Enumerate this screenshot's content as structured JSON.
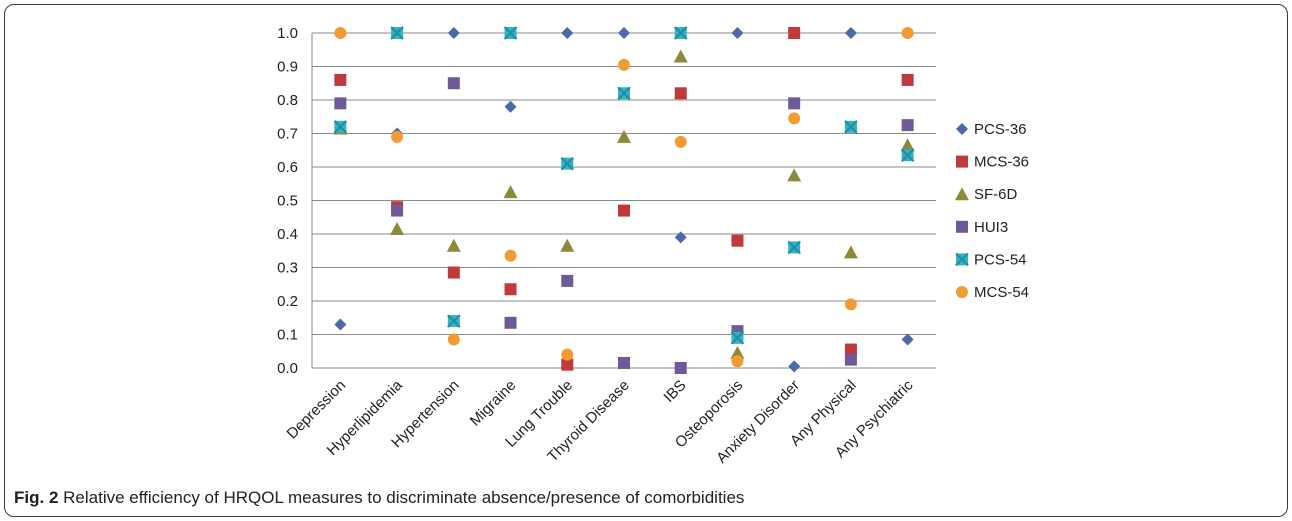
{
  "caption": {
    "label": "Fig. 2",
    "text": "Relative efficiency of HRQOL measures to discriminate absence/presence of comorbidities"
  },
  "chart_data": {
    "type": "scatter",
    "categories": [
      "Depression",
      "Hyperlipidemia",
      "Hypertension",
      "Migraine",
      "Lung Trouble",
      "Thyroid Disease",
      "IBS",
      "Osteoporosis",
      "Anxiety Disorder",
      "Any Physical",
      "Any Psychiatric"
    ],
    "y_ticks": [
      "0.0",
      "0.1",
      "0.2",
      "0.3",
      "0.4",
      "0.5",
      "0.6",
      "0.7",
      "0.8",
      "0.9",
      "1.0"
    ],
    "ylim": [
      0,
      1
    ],
    "grid": true,
    "legend_position": "right",
    "series": [
      {
        "name": "PCS-36",
        "marker": "diamond",
        "color": "#4a6aa8",
        "values": [
          0.13,
          0.7,
          1.0,
          0.78,
          1.0,
          1.0,
          0.39,
          1.0,
          0.005,
          1.0,
          0.085
        ]
      },
      {
        "name": "MCS-36",
        "marker": "square",
        "color": "#c0393b",
        "values": [
          0.86,
          0.48,
          0.285,
          0.235,
          0.01,
          0.47,
          0.82,
          0.38,
          1.0,
          0.055,
          0.86
        ]
      },
      {
        "name": "SF-6D",
        "marker": "triangle",
        "color": "#8b8a3b",
        "values": [
          0.715,
          0.415,
          0.365,
          0.525,
          0.365,
          0.69,
          0.93,
          0.045,
          0.575,
          0.345,
          0.665
        ]
      },
      {
        "name": "HUI3",
        "marker": "square",
        "color": "#6e5a98",
        "values": [
          0.79,
          0.47,
          0.85,
          0.135,
          0.26,
          0.015,
          0.0,
          0.11,
          0.79,
          0.025,
          0.725
        ]
      },
      {
        "name": "PCS-54",
        "marker": "xsquare",
        "color": "#33b2c6",
        "values": [
          0.72,
          1.0,
          0.14,
          1.0,
          0.61,
          0.82,
          1.0,
          0.09,
          0.36,
          0.72,
          0.635
        ]
      },
      {
        "name": "MCS-54",
        "marker": "circle",
        "color": "#f29b32",
        "values": [
          1.0,
          0.69,
          0.085,
          0.335,
          0.04,
          0.905,
          0.675,
          0.02,
          0.745,
          0.19,
          1.0
        ]
      }
    ]
  }
}
